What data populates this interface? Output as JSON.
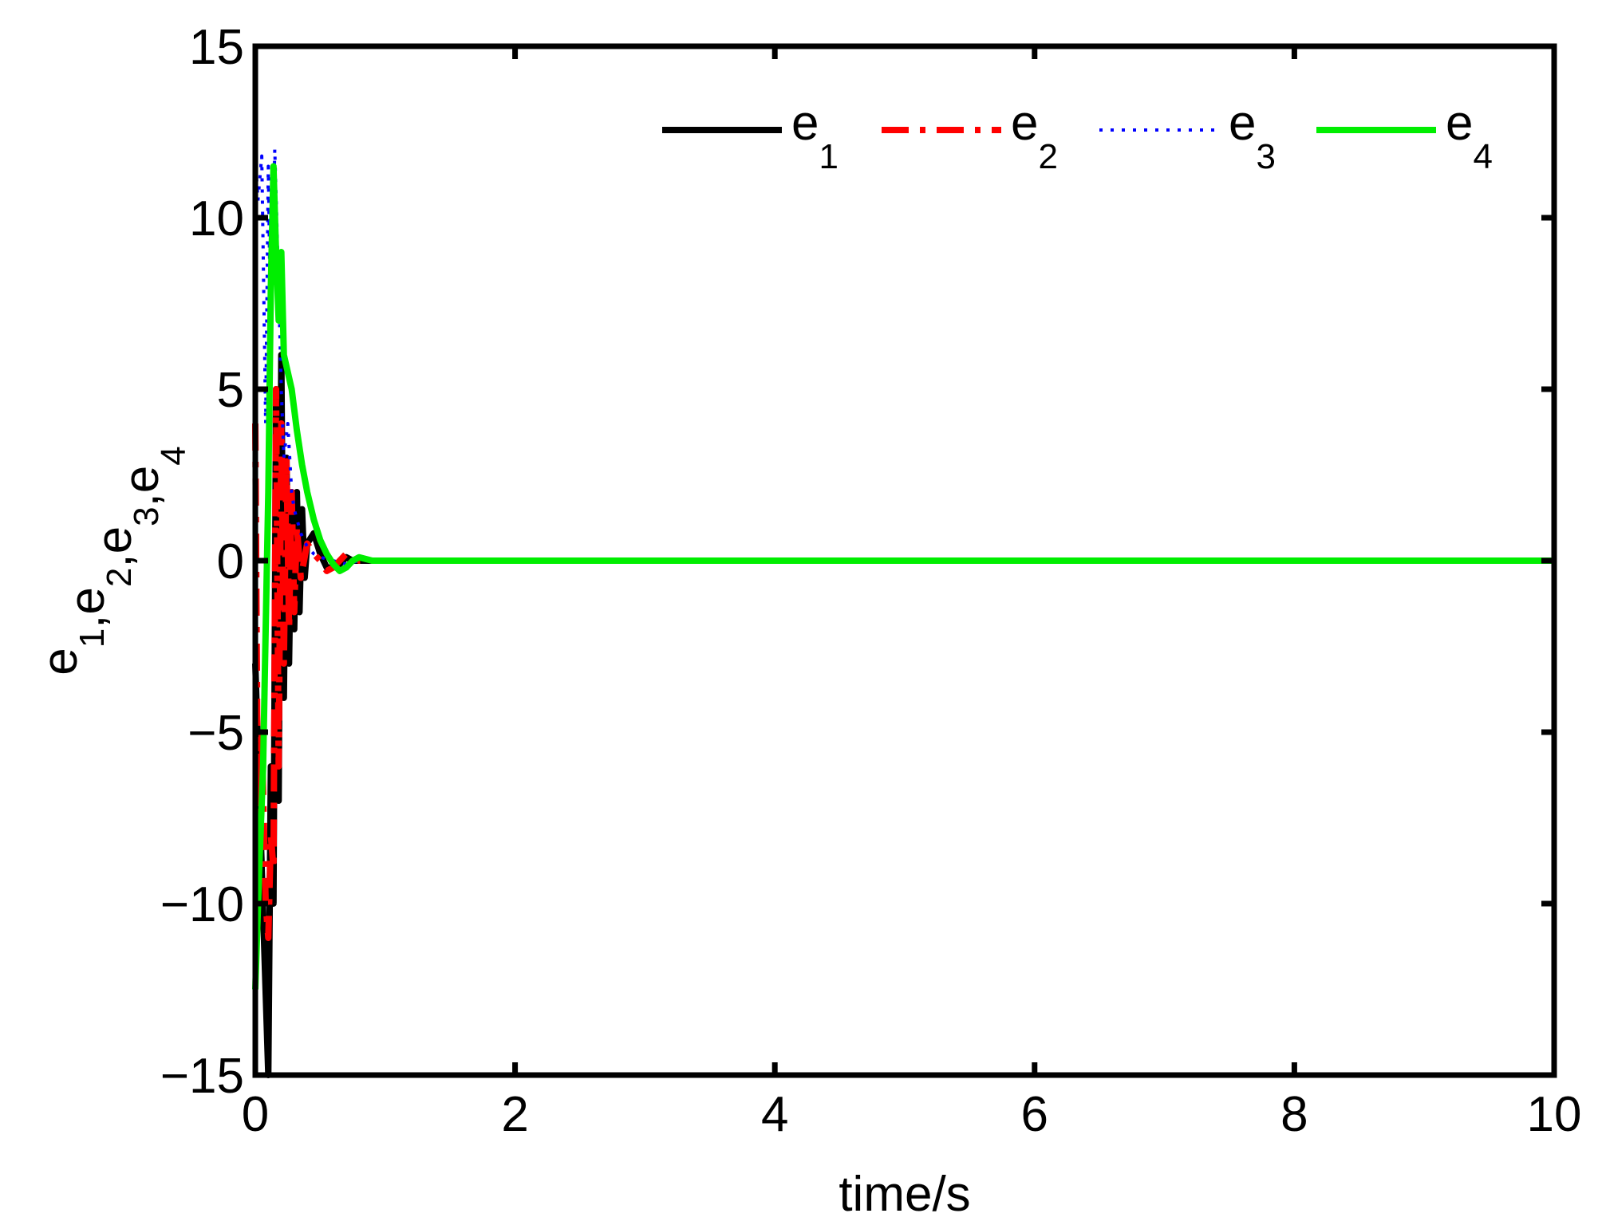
{
  "chart_data": {
    "type": "line",
    "xlabel": "time/s",
    "ylabel": {
      "parts": [
        {
          "base": "e",
          "sub": "1"
        },
        {
          "sep": ","
        },
        {
          "base": "e",
          "sub": "2"
        },
        {
          "sep": ","
        },
        {
          "base": "e",
          "sub": "3"
        },
        {
          "sep": ","
        },
        {
          "base": "e",
          "sub": "4"
        }
      ]
    },
    "xlim": [
      0,
      10
    ],
    "ylim": [
      -15,
      15
    ],
    "xticks": [
      0,
      2,
      4,
      6,
      8,
      10
    ],
    "xtick_labels": [
      "0",
      "2",
      "4",
      "6",
      "8",
      "10"
    ],
    "yticks": [
      -15,
      -10,
      -5,
      0,
      5,
      10,
      15
    ],
    "ytick_labels": [
      "−15",
      "−10",
      "−5",
      "0",
      "5",
      "10",
      "15"
    ],
    "grid": false,
    "legend_position": "top-right",
    "series": [
      {
        "name": "e",
        "sub": "1",
        "color": "#000000",
        "style": "solid",
        "x": [
          0,
          0.05,
          0.1,
          0.12,
          0.14,
          0.16,
          0.18,
          0.2,
          0.22,
          0.24,
          0.26,
          0.28,
          0.3,
          0.32,
          0.34,
          0.36,
          0.38,
          0.4,
          0.45,
          0.5,
          0.55,
          0.6,
          0.65,
          0.7,
          0.75,
          0.8,
          0.9,
          1.0,
          10
        ],
        "y": [
          -3,
          -9,
          -15,
          -6,
          -10,
          5,
          -7,
          6,
          -4,
          3,
          -3,
          2,
          -2,
          2,
          -1.5,
          1.5,
          -0.5,
          0.5,
          0.8,
          0.2,
          -0.2,
          -0.2,
          -0.1,
          0.1,
          0,
          0,
          0,
          0,
          0
        ]
      },
      {
        "name": "e",
        "sub": "2",
        "color": "#ff0000",
        "style": "dashdot",
        "x": [
          0,
          0.02,
          0.05,
          0.08,
          0.1,
          0.12,
          0.14,
          0.16,
          0.18,
          0.2,
          0.22,
          0.24,
          0.26,
          0.28,
          0.3,
          0.32,
          0.35,
          0.4,
          0.45,
          0.5,
          0.55,
          0.6,
          0.65,
          0.7,
          0.75,
          0.8,
          0.9,
          1.0,
          10
        ],
        "y": [
          4,
          -8,
          -5,
          -10,
          -11,
          -8,
          -9,
          5,
          -6,
          4,
          -3,
          3,
          -2,
          2,
          -1.5,
          1,
          -0.5,
          0.5,
          0.2,
          0,
          -0.3,
          -0.2,
          0,
          0.2,
          0.1,
          0,
          0,
          0,
          0
        ]
      },
      {
        "name": "e",
        "sub": "3",
        "color": "#0000ff",
        "style": "dotted",
        "x": [
          0,
          0.02,
          0.05,
          0.08,
          0.1,
          0.12,
          0.15,
          0.18,
          0.2,
          0.22,
          0.25,
          0.28,
          0.3,
          0.35,
          0.4,
          0.45,
          0.5,
          0.6,
          0.7,
          0.8,
          0.9,
          1.0,
          10
        ],
        "y": [
          11.8,
          10.5,
          11.8,
          4,
          11.5,
          6,
          12,
          8,
          5,
          3,
          4,
          2,
          1.5,
          0.8,
          0.4,
          0.2,
          0.1,
          0,
          -0.1,
          0,
          0,
          0,
          0
        ]
      },
      {
        "name": "e",
        "sub": "4",
        "color": "#00ee00",
        "style": "solid",
        "x": [
          0,
          0.03,
          0.06,
          0.08,
          0.1,
          0.12,
          0.14,
          0.16,
          0.18,
          0.2,
          0.22,
          0.25,
          0.28,
          0.32,
          0.36,
          0.4,
          0.45,
          0.5,
          0.55,
          0.6,
          0.65,
          0.7,
          0.75,
          0.8,
          0.9,
          1.0,
          10
        ],
        "y": [
          -12.5,
          -9,
          -6,
          -2,
          2,
          8,
          11.5,
          9,
          7,
          9,
          6,
          5.5,
          5,
          3.8,
          2.8,
          2,
          1.2,
          0.6,
          0.2,
          -0.1,
          -0.3,
          -0.2,
          0,
          0.1,
          0,
          0,
          0
        ]
      }
    ]
  }
}
